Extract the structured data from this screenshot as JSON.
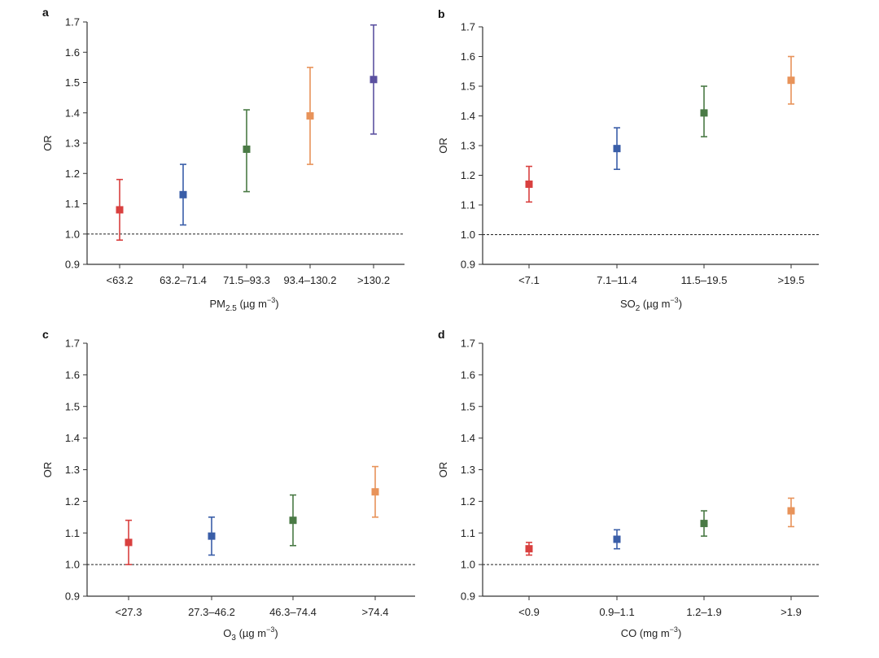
{
  "colors": [
    "#d9403f",
    "#3a5ea8",
    "#4a7a45",
    "#e8935a",
    "#5b51a0"
  ],
  "chart_data": [
    {
      "type": "scatter",
      "panel_label": "a",
      "ylabel": "OR",
      "xlabel_main": "PM",
      "xlabel_sub": "2.5",
      "xlabel_rest": " (µg m",
      "xlabel_sup": "−3",
      "xlabel_end": ")",
      "ylim": [
        0.9,
        1.7
      ],
      "yticks": [
        "0.9",
        "1.0",
        "1.1",
        "1.2",
        "1.3",
        "1.4",
        "1.5",
        "1.6",
        "1.7"
      ],
      "reference_line": 1.0,
      "categories": [
        "<63.2",
        "63.2–71.4",
        "71.5–93.3",
        "93.4–130.2",
        ">130.2"
      ],
      "values": [
        1.08,
        1.13,
        1.28,
        1.39,
        1.51
      ],
      "ci_low": [
        0.98,
        1.03,
        1.14,
        1.23,
        1.33
      ],
      "ci_high": [
        1.18,
        1.23,
        1.41,
        1.55,
        1.69
      ]
    },
    {
      "type": "scatter",
      "panel_label": "b",
      "ylabel": "OR",
      "xlabel_main": "SO",
      "xlabel_sub": "2",
      "xlabel_rest": " (µg m",
      "xlabel_sup": "−3",
      "xlabel_end": ")",
      "ylim": [
        0.9,
        1.7
      ],
      "yticks": [
        "0.9",
        "1.0",
        "1.1",
        "1.2",
        "1.3",
        "1.4",
        "1.5",
        "1.6",
        "1.7"
      ],
      "reference_line": 1.0,
      "categories": [
        "<7.1",
        "7.1–11.4",
        "11.5–19.5",
        ">19.5"
      ],
      "values": [
        1.17,
        1.29,
        1.41,
        1.52
      ],
      "ci_low": [
        1.11,
        1.22,
        1.33,
        1.44
      ],
      "ci_high": [
        1.23,
        1.36,
        1.5,
        1.6
      ]
    },
    {
      "type": "scatter",
      "panel_label": "c",
      "ylabel": "OR",
      "xlabel_main": "O",
      "xlabel_sub": "3",
      "xlabel_rest": " (µg m",
      "xlabel_sup": "−3",
      "xlabel_end": ")",
      "ylim": [
        0.9,
        1.7
      ],
      "yticks": [
        "0.9",
        "1.0",
        "1.1",
        "1.2",
        "1.3",
        "1.4",
        "1.5",
        "1.6",
        "1.7"
      ],
      "reference_line": 1.0,
      "categories": [
        "<27.3",
        "27.3–46.2",
        "46.3–74.4",
        ">74.4"
      ],
      "values": [
        1.07,
        1.09,
        1.14,
        1.23
      ],
      "ci_low": [
        1.0,
        1.03,
        1.06,
        1.15
      ],
      "ci_high": [
        1.14,
        1.15,
        1.22,
        1.31
      ]
    },
    {
      "type": "scatter",
      "panel_label": "d",
      "ylabel": "OR",
      "xlabel_main": "CO",
      "xlabel_sub": "",
      "xlabel_rest": " (mg m",
      "xlabel_sup": "−3",
      "xlabel_end": ")",
      "ylim": [
        0.9,
        1.7
      ],
      "yticks": [
        "0.9",
        "1.0",
        "1.1",
        "1.2",
        "1.3",
        "1.4",
        "1.5",
        "1.6",
        "1.7"
      ],
      "reference_line": 1.0,
      "categories": [
        "<0.9",
        "0.9–1.1",
        "1.2–1.9",
        ">1.9"
      ],
      "values": [
        1.05,
        1.08,
        1.13,
        1.17
      ],
      "ci_low": [
        1.03,
        1.05,
        1.09,
        1.12
      ],
      "ci_high": [
        1.07,
        1.11,
        1.17,
        1.21
      ]
    }
  ]
}
